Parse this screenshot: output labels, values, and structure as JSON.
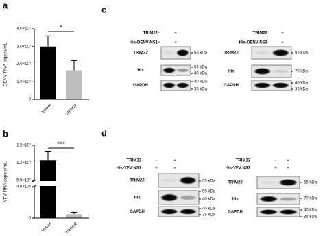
{
  "chart_data": [
    {
      "type": "bar",
      "panel": "a",
      "ylabel": "DENV RNA copies/mL",
      "categories": [
        "Vector",
        "TRIM22"
      ],
      "values": [
        30000000,
        16500000
      ],
      "errors": [
        6000000,
        5500000
      ],
      "colors": [
        "#000000",
        "#bdbdbd"
      ],
      "ylim": [
        0,
        40000000
      ],
      "yticks": [
        0,
        {
          "value": 10000000,
          "label": "1.0×10⁷"
        },
        {
          "value": 20000000,
          "label": "2.0×10⁷"
        },
        {
          "value": 30000000,
          "label": "3.0×10⁷"
        },
        {
          "value": 40000000,
          "label": "4.0×10⁷"
        }
      ],
      "annotation": "*"
    },
    {
      "type": "bar",
      "panel": "b",
      "ylabel": "YFV RNA copies/mL",
      "categories": [
        "Vector",
        "TRIM22"
      ],
      "values": [
        12500000,
        500000
      ],
      "errors": [
        1500000,
        250000
      ],
      "colors": [
        "#000000",
        "#bdbdbd"
      ],
      "ylim": [
        0,
        15000000
      ],
      "axis_break": [
        4000000,
        9000000
      ],
      "yticks": [
        0,
        {
          "value": 4000000,
          "label": "4.0×10⁶"
        },
        {
          "value": 9000000,
          "label": "9.0×10⁶"
        },
        {
          "value": 12000000,
          "label": "1.2×10⁷"
        },
        {
          "value": 15000000,
          "label": "1.5×10⁷"
        }
      ],
      "annotation": "***"
    }
  ],
  "blot_panels": [
    {
      "panel": "c",
      "blots": [
        {
          "conditions": [
            {
              "name": "TRIM22",
              "signs": [
                "-",
                "+"
              ]
            },
            {
              "name": "His-DENV NS1",
              "signs": [
                "+",
                "+"
              ]
            }
          ],
          "rows": [
            {
              "name": "TRIM22",
              "markers": [
                "55 kDa"
              ]
            },
            {
              "name": "His",
              "markers": [
                "55 kDa",
                "40 kDa"
              ]
            },
            {
              "name": "GAPDH",
              "markers": [
                "40 kDa",
                "35 kDa"
              ]
            }
          ]
        },
        {
          "conditions": [
            {
              "name": "TRIM22",
              "signs": [
                "-",
                "+"
              ]
            },
            {
              "name": "His-DENV NS3",
              "signs": [
                "+",
                "+"
              ]
            }
          ],
          "rows": [
            {
              "name": "TRIM22",
              "markers": [
                "55 kDa"
              ]
            },
            {
              "name": "His",
              "markers": [
                "70 kDa"
              ]
            },
            {
              "name": "GAPDH",
              "markers": [
                "40 kDa",
                "35 kDa"
              ]
            }
          ]
        }
      ]
    },
    {
      "panel": "d",
      "blots": [
        {
          "conditions": [
            {
              "name": "TRIM22",
              "signs": [
                "-",
                "+"
              ]
            },
            {
              "name": "His-YFV NS1",
              "signs": [
                "+",
                "+"
              ]
            }
          ],
          "rows": [
            {
              "name": "TRIM22",
              "markers": [
                "55 kDa"
              ]
            },
            {
              "name": "His",
              "markers": [
                "55 kDa",
                "40 kDa"
              ]
            },
            {
              "name": "GAPDH",
              "markers": [
                "40 kDa",
                "35 kDa"
              ]
            }
          ]
        },
        {
          "conditions": [
            {
              "name": "TRIM22",
              "signs": [
                "-",
                "+"
              ]
            },
            {
              "name": "His-YFV NS3",
              "signs": [
                "+",
                "+"
              ]
            }
          ],
          "rows": [
            {
              "name": "TRIM22",
              "markers": [
                "55 kDa"
              ]
            },
            {
              "name": "His",
              "markers": [
                "70 kDa"
              ]
            },
            {
              "name": "GAPDH",
              "markers": [
                "40 kDa",
                "35 kDa"
              ]
            }
          ]
        }
      ]
    }
  ]
}
